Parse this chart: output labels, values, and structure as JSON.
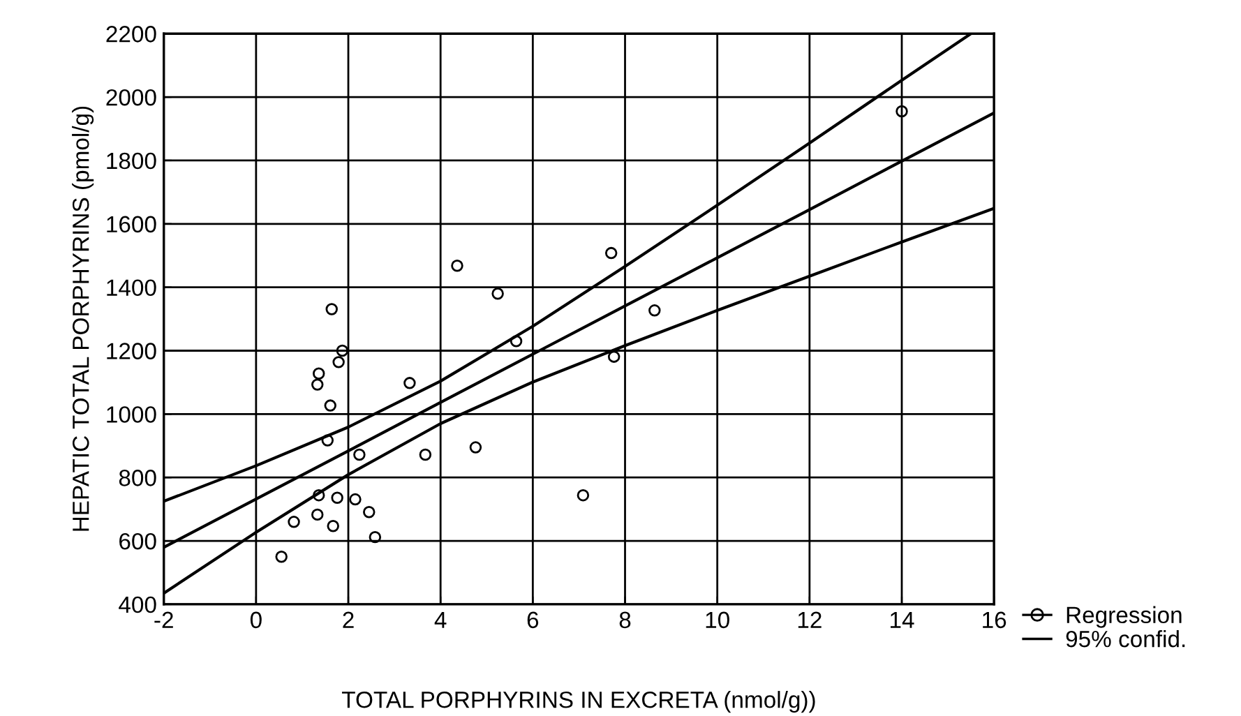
{
  "chart_data": {
    "type": "scatter",
    "xlabel": "TOTAL PORPHYRINS IN EXCRETA (nmol/g))",
    "ylabel": "HEPATIC TOTAL PORPHYRINS (pmol/g)",
    "xlim": [
      -2,
      16
    ],
    "ylim": [
      400,
      2200
    ],
    "xticks": [
      -2,
      0,
      2,
      4,
      6,
      8,
      10,
      12,
      14,
      16
    ],
    "yticks": [
      400,
      600,
      800,
      1000,
      1200,
      1400,
      1600,
      1800,
      2000,
      2200
    ],
    "grid": true,
    "legend": "bottom right",
    "series": [
      {
        "marker": "circle",
        "color": "#000000",
        "x": [
          1.64,
          1.87,
          1.79,
          1.36,
          1.33,
          1.61,
          3.33,
          5.64,
          1.55,
          2.24,
          3.67,
          4.76,
          1.36,
          1.76,
          2.15,
          2.45,
          0.82,
          1.33,
          1.67,
          2.58,
          0.55,
          4.36,
          5.24,
          7.7,
          8.64,
          7.76,
          7.09,
          14.0
        ],
        "values": [
          1331,
          1200,
          1164,
          1128,
          1093,
          1027,
          1098,
          1230,
          917,
          872,
          872,
          895,
          744,
          736,
          731,
          691,
          660,
          683,
          647,
          612,
          550,
          1468,
          1380,
          1508,
          1327,
          1181,
          744,
          1955
        ]
      },
      {
        "type": "line",
        "name": "Regression",
        "color": "#000000",
        "x": [
          -2,
          0,
          2,
          4,
          6,
          8,
          10,
          12,
          14,
          16
        ],
        "values": [
          580,
          732,
          884,
          1037,
          1189,
          1341,
          1493,
          1645,
          1798,
          1950
        ]
      },
      {
        "type": "line",
        "name": "95% confid.",
        "color": "#000000",
        "x": [
          -2,
          0,
          2,
          4,
          6,
          8,
          10,
          12,
          14,
          15.5
        ],
        "values": [
          725,
          837,
          959,
          1104,
          1277,
          1466,
          1659,
          1855,
          2053,
          2200
        ]
      },
      {
        "type": "line",
        "color": "#000000",
        "x": [
          -2,
          0,
          2,
          4,
          6,
          8,
          10,
          12,
          14,
          16
        ],
        "values": [
          435,
          627,
          809,
          970,
          1101,
          1216,
          1327,
          1435,
          1543,
          1649
        ]
      }
    ]
  }
}
